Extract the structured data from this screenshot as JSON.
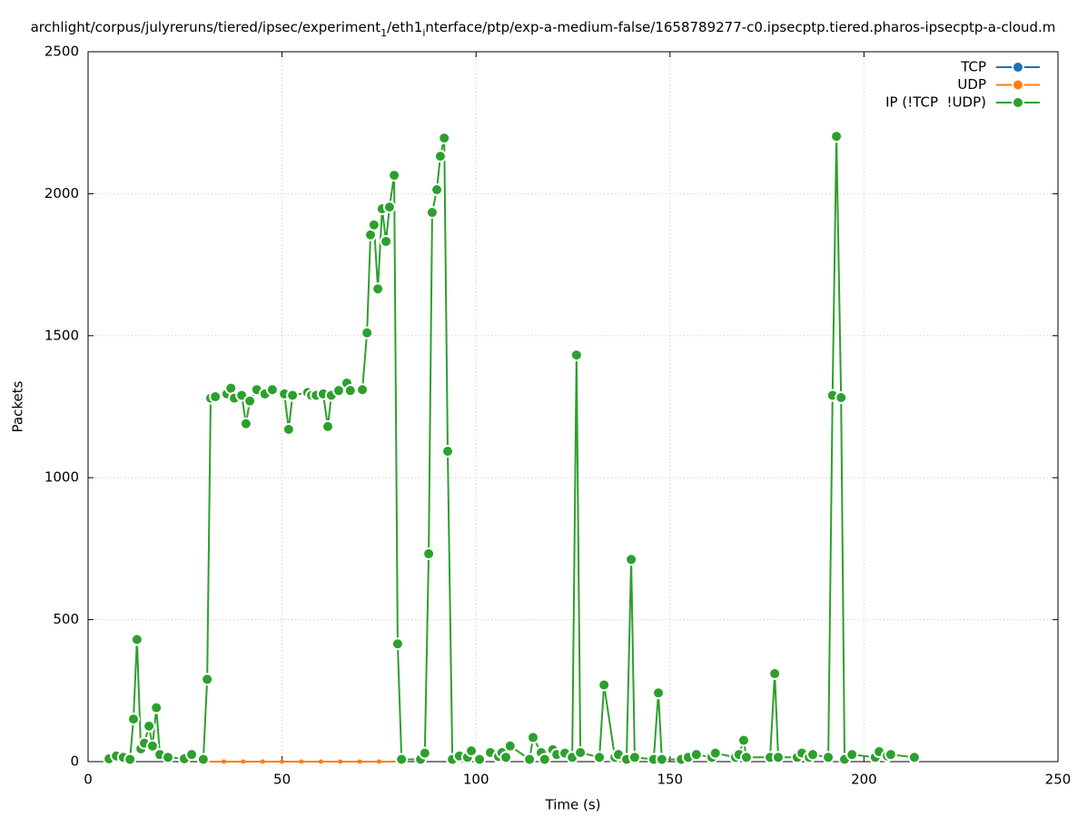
{
  "chart_data": {
    "type": "line",
    "title": [
      "archlight/corpus/julyreruns/tiered/ipsec/experiment",
      "1",
      "/eth1",
      "i",
      "nterface/ptp/exp-a-medium-false/1658789277-c0.ipsecptp.tiered.pharos-ipsecptp-a-cloud.m"
    ],
    "x_label": "Time (s)",
    "y_label": "Packets",
    "xlim": [
      0,
      250
    ],
    "xticks": [
      0,
      50,
      100,
      150,
      200,
      250
    ],
    "ylim": [
      0,
      2500
    ],
    "yticks": [
      0,
      500,
      1000,
      1500,
      2000,
      2500
    ],
    "grid": true,
    "legend": "top-right",
    "series": [
      {
        "name": "TCP",
        "color": "#1f6fb4",
        "x": [],
        "values": []
      },
      {
        "name": "UDP",
        "color": "#ff7f0e",
        "x": [
          30,
          35,
          40,
          45,
          50,
          55,
          60,
          65,
          70,
          75,
          80
        ],
        "values": [
          0,
          0,
          0,
          0,
          0,
          0,
          0,
          0,
          0,
          0,
          0
        ]
      },
      {
        "name": "IP (!TCP  !UDP)",
        "color": "#2ca02c",
        "x": [
          5.4,
          7.3,
          9.1,
          10.8,
          11.7,
          12.6,
          13.6,
          14.5,
          15.7,
          16.6,
          17.6,
          18.5,
          20.6,
          24.8,
          26.7,
          29.7,
          30.7,
          31.6,
          32.8,
          35.8,
          36.8,
          37.7,
          39.6,
          40.7,
          41.7,
          43.5,
          45.6,
          47.5,
          50.6,
          51.7,
          52.7,
          56.6,
          57.6,
          58.8,
          60.6,
          61.8,
          62.7,
          64.6,
          66.7,
          67.6,
          70.7,
          71.9,
          72.8,
          73.7,
          74.7,
          75.8,
          76.8,
          77.7,
          78.9,
          79.8,
          80.8,
          85.7,
          86.8,
          87.8,
          88.7,
          89.9,
          90.8,
          91.8,
          92.7,
          93.9,
          95.7,
          97.8,
          98.8,
          100.9,
          103.7,
          105.8,
          106.7,
          107.7,
          108.8,
          113.8,
          114.7,
          116.8,
          117.7,
          119.8,
          120.8,
          122.9,
          124.8,
          125.9,
          126.9,
          131.8,
          133.0,
          135.8,
          136.7,
          138.8,
          140.0,
          140.9,
          145.8,
          147.0,
          147.9,
          152.9,
          154.7,
          156.8,
          160.8,
          161.7,
          166.9,
          167.8,
          169.0,
          169.7,
          175.8,
          177.0,
          177.9,
          182.8,
          184.0,
          185.9,
          186.8,
          190.8,
          191.9,
          192.9,
          194.1,
          195.0,
          196.9,
          202.9,
          203.9,
          206.0,
          206.9,
          213.0
        ],
        "values": [
          10,
          20,
          15,
          8,
          150,
          430,
          45,
          65,
          125,
          55,
          190,
          25,
          15,
          10,
          25,
          8,
          290,
          1280,
          1285,
          1295,
          1315,
          1280,
          1290,
          1190,
          1270,
          1310,
          1295,
          1310,
          1295,
          1170,
          1290,
          1300,
          1290,
          1290,
          1295,
          1180,
          1290,
          1307,
          1333,
          1307,
          1310,
          1510,
          1855,
          1890,
          1665,
          1947,
          1832,
          1953,
          2065,
          415,
          8,
          8,
          30,
          732,
          1934,
          2014,
          2132,
          2196,
          1093,
          8,
          20,
          15,
          38,
          8,
          32,
          18,
          32,
          15,
          55,
          8,
          85,
          32,
          8,
          42,
          25,
          30,
          15,
          1432,
          32,
          15,
          270,
          15,
          25,
          8,
          712,
          15,
          8,
          242,
          8,
          8,
          15,
          25,
          15,
          30,
          15,
          25,
          75,
          15,
          15,
          310,
          15,
          15,
          30,
          15,
          25,
          15,
          1290,
          2202,
          1282,
          8,
          25,
          15,
          35,
          20,
          25,
          15
        ]
      }
    ]
  }
}
